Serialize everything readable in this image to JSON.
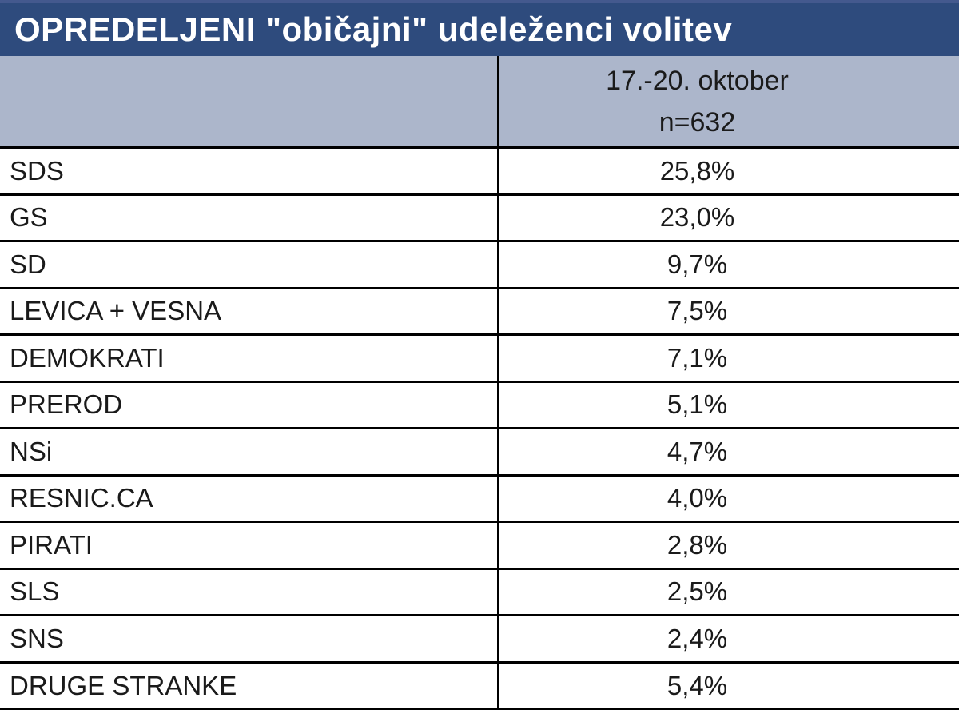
{
  "title": "OPREDELJENI \"običajni\" udeleženci volitev",
  "table": {
    "column_header": {
      "line1": "17.-20. oktober",
      "line2": "n=632"
    },
    "rows": [
      {
        "party": "SDS",
        "value": "25,8%"
      },
      {
        "party": "GS",
        "value": "23,0%"
      },
      {
        "party": "SD",
        "value": "9,7%"
      },
      {
        "party": "LEVICA + VESNA",
        "value": "7,5%"
      },
      {
        "party": "DEMOKRATI",
        "value": "7,1%"
      },
      {
        "party": "PREROD",
        "value": "5,1%"
      },
      {
        "party": "NSi",
        "value": "4,7%"
      },
      {
        "party": "RESNIC.CA",
        "value": "4,0%"
      },
      {
        "party": "PIRATI",
        "value": "2,8%"
      },
      {
        "party": "SLS",
        "value": "2,5%"
      },
      {
        "party": "SNS",
        "value": "2,4%"
      },
      {
        "party": "DRUGE STRANKE",
        "value": "5,4%"
      }
    ]
  },
  "colors": {
    "title_bar": "#2e4b7d",
    "title_bar_top_edge": "#44598e",
    "header_background": "#acb6cb",
    "grid_line": "#000000",
    "text": "#1a1a1a",
    "title_text": "#ffffff"
  },
  "chart_data": {
    "type": "table",
    "title": "OPREDELJENI \"običajni\" udeleženci volitev",
    "column_header": "17.-20. oktober n=632",
    "sample_size": 632,
    "categories": [
      "SDS",
      "GS",
      "SD",
      "LEVICA + VESNA",
      "DEMOKRATI",
      "PREROD",
      "NSi",
      "RESNIC.CA",
      "PIRATI",
      "SLS",
      "SNS",
      "DRUGE STRANKE"
    ],
    "values": [
      25.8,
      23.0,
      9.7,
      7.5,
      7.1,
      5.1,
      4.7,
      4.0,
      2.8,
      2.5,
      2.4,
      5.4
    ],
    "unit": "%"
  }
}
